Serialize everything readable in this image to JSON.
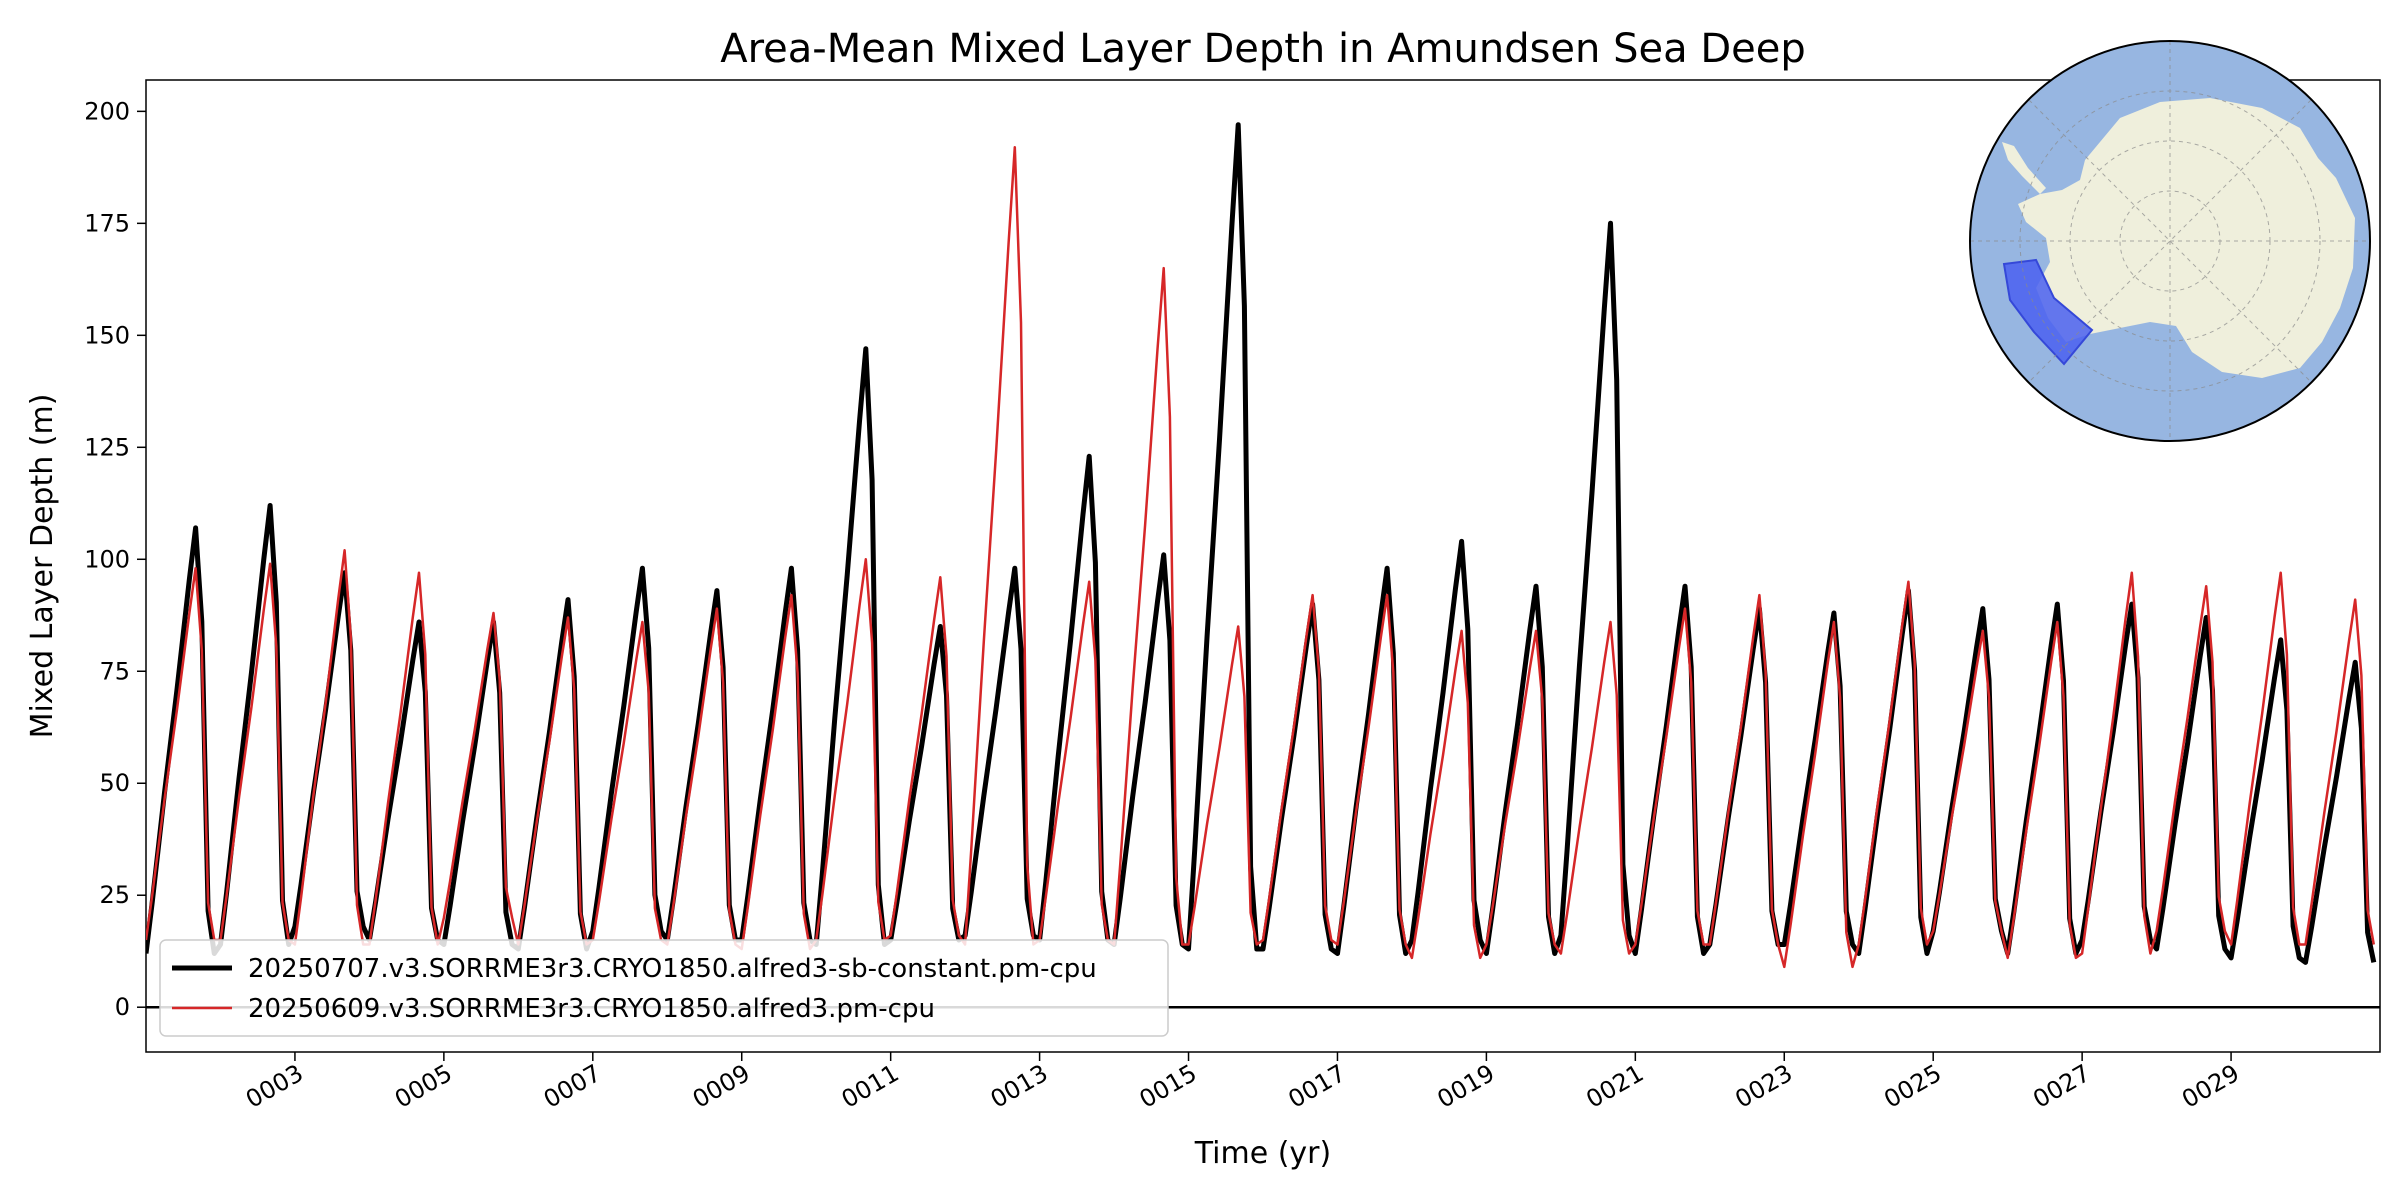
{
  "chart_data": {
    "type": "line",
    "title": "Area-Mean Mixed Layer Depth in Amundsen Sea Deep",
    "xlabel": "Time (yr)",
    "ylabel": "Mixed Layer Depth (m)",
    "xlim": [
      1.0,
      31.0
    ],
    "ylim": [
      -10,
      207
    ],
    "x_ticks": [
      3,
      5,
      7,
      9,
      11,
      13,
      15,
      17,
      19,
      21,
      23,
      25,
      27,
      29
    ],
    "x_tick_labels": [
      "0003",
      "0005",
      "0007",
      "0009",
      "0011",
      "0013",
      "0015",
      "0017",
      "0019",
      "0021",
      "0023",
      "0025",
      "0027",
      "0029"
    ],
    "y_ticks": [
      0,
      25,
      50,
      75,
      100,
      125,
      150,
      175,
      200
    ],
    "y_tick_labels": [
      "0",
      "25",
      "50",
      "75",
      "100",
      "125",
      "150",
      "175",
      "200"
    ],
    "zero_line": 0,
    "legend_position": "lower-left",
    "inset": "south-polar-map-with-highlighted-region",
    "series": [
      {
        "name": "20250707.v3.SORRME3r3.CRYO1850.alfred3-sb-constant.pm-cpu",
        "color": "#000000",
        "peaks": [
          107,
          112,
          97,
          86,
          86,
          91,
          98,
          93,
          98,
          147,
          85,
          98,
          123,
          101,
          197,
          90,
          98,
          104,
          94,
          175,
          94,
          89,
          88,
          93,
          89,
          90,
          90,
          87,
          82,
          77
        ],
        "troughs": [
          12,
          14,
          18,
          15,
          14,
          13,
          17,
          15,
          15,
          14,
          15,
          16,
          15,
          14,
          13,
          13,
          12,
          15,
          12,
          16,
          12,
          14,
          14,
          12,
          17,
          12,
          15,
          13,
          11,
          10
        ]
      },
      {
        "name": "20250609.v3.SORRME3r3.CRYO1850.alfred3.pm-cpu",
        "color": "#d62728",
        "peaks": [
          98,
          99,
          102,
          97,
          88,
          87,
          86,
          89,
          92,
          100,
          96,
          192,
          95,
          165,
          85,
          92,
          92,
          84,
          84,
          86,
          89,
          92,
          86,
          95,
          84,
          86,
          97,
          94,
          97,
          91
        ],
        "troughs": [
          15,
          15,
          14,
          14,
          20,
          14,
          15,
          14,
          13,
          15,
          16,
          14,
          15,
          14,
          14,
          15,
          14,
          11,
          14,
          12,
          14,
          14,
          9,
          14,
          17,
          11,
          12,
          17,
          14,
          14
        ]
      }
    ]
  }
}
